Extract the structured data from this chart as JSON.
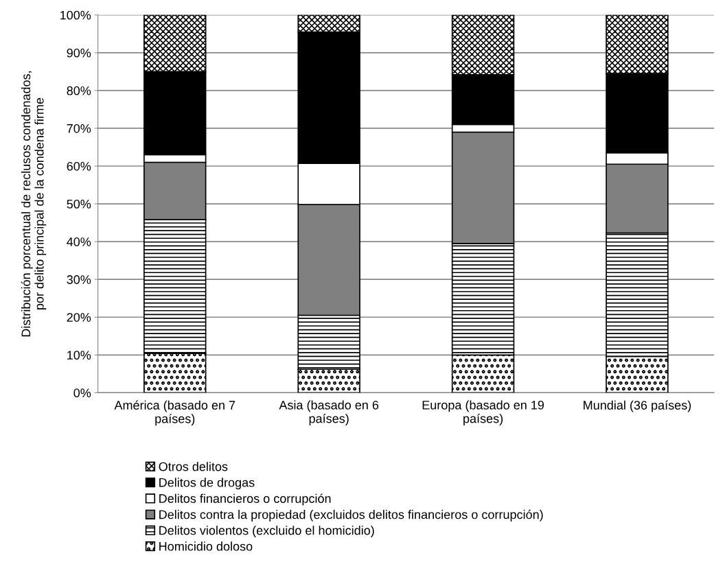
{
  "chart_data": {
    "type": "bar",
    "stacked": true,
    "ylabel": "Distribución porcentual de reclusos condenados,\npor delito principal de la condena firme",
    "categories": [
      "América (basado en 7\npaíses)",
      "Asia (basado en 6\npaíses)",
      "Europa (basado en 19\npaíses)",
      "Mundial (36 países)"
    ],
    "series": [
      {
        "name": "Homicidio doloso",
        "color": "#000000",
        "values": [
          10.4,
          6.2,
          10,
          9.6
        ]
      },
      {
        "name": "Delitos violentos (excluido el homicidio)",
        "color": "#000000",
        "values": [
          35.4,
          14.3,
          29.5,
          32.7
        ]
      },
      {
        "name": "Delitos contra la propiedad (excluidos delitos financieros o corrupción)",
        "color": "#808080",
        "values": [
          15.2,
          29.3,
          29.5,
          18.2
        ]
      },
      {
        "name": "Delitos financieros o corrupción",
        "color": "#ffffff",
        "values": [
          2,
          10.9,
          2,
          3
        ]
      },
      {
        "name": "Delitos de drogas",
        "color": "#000000",
        "values": [
          22,
          34.8,
          13.2,
          21
        ]
      },
      {
        "name": "Otros delitos",
        "color": "#000000",
        "values": [
          15,
          4.5,
          15.8,
          15.5
        ]
      }
    ],
    "ylim": [
      0,
      100
    ],
    "yticks": [
      {
        "value": 0,
        "label": "0%"
      },
      {
        "value": 10,
        "label": "10%"
      },
      {
        "value": 20,
        "label": "20%"
      },
      {
        "value": 30,
        "label": "30%"
      },
      {
        "value": 40,
        "label": "40%"
      },
      {
        "value": 50,
        "label": "50%"
      },
      {
        "value": 60,
        "label": "60%"
      },
      {
        "value": 70,
        "label": "70%"
      },
      {
        "value": 80,
        "label": "80%"
      },
      {
        "value": 90,
        "label": "90%"
      },
      {
        "value": 100,
        "label": "100%"
      }
    ],
    "grid": "y",
    "legend": "bottom"
  }
}
